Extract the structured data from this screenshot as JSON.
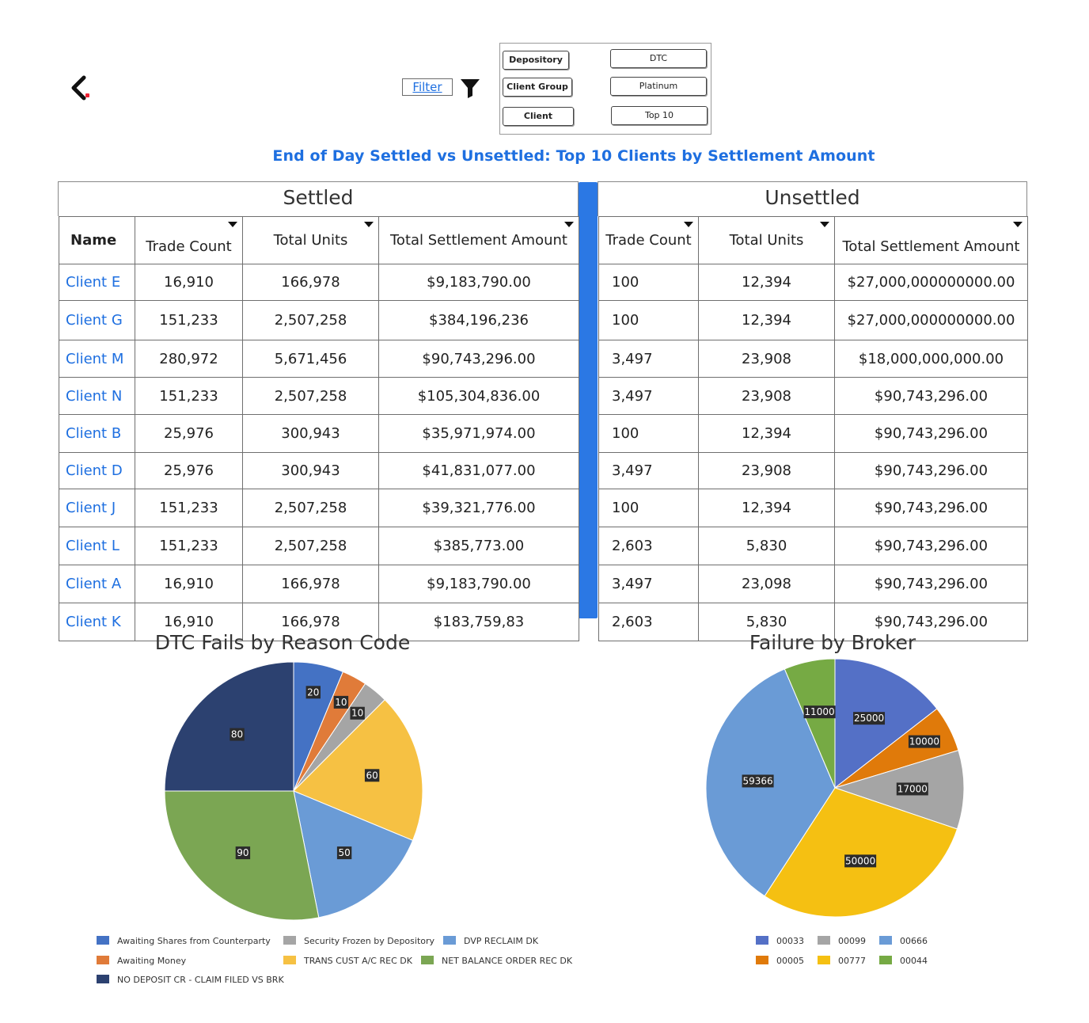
{
  "nav": {
    "back_icon": "chevron-left-icon"
  },
  "filter": {
    "link_label": "Filter",
    "icon": "funnel-icon",
    "fields": [
      {
        "label": "Depository",
        "value": "DTC"
      },
      {
        "label": "Client Group",
        "value": "Platinum"
      },
      {
        "label": "Client",
        "value": "Top 10"
      }
    ]
  },
  "page_title": "End of Day Settled vs Unsettled: Top 10 Clients by Settlement Amount",
  "settled": {
    "heading": "Settled",
    "columns": [
      "Name",
      "Trade Count",
      "Total Units",
      "Total Settlement Amount"
    ]
  },
  "unsettled": {
    "heading": "Unsettled",
    "columns": [
      "Trade Count",
      "Total Units",
      "Total Settlement Amount"
    ]
  },
  "rows": [
    {
      "name": "Client E",
      "s_trades": "16,910",
      "s_units": "166,978",
      "s_amount": "$9,183,790.00",
      "u_trades": "100",
      "u_units": "12,394",
      "u_amount": "$27,000,000000000.00"
    },
    {
      "name": "Client G",
      "s_trades": "151,233",
      "s_units": "2,507,258",
      "s_amount": "$384,196,236",
      "u_trades": "100",
      "u_units": "12,394",
      "u_amount": "$27,000,000000000.00"
    },
    {
      "name": "Client M",
      "s_trades": "280,972",
      "s_units": "5,671,456",
      "s_amount": "$90,743,296.00",
      "u_trades": "3,497",
      "u_units": "23,908",
      "u_amount": "$18,000,000,000.00"
    },
    {
      "name": "Client N",
      "s_trades": "151,233",
      "s_units": "2,507,258",
      "s_amount": "$105,304,836.00",
      "u_trades": "3,497",
      "u_units": "23,908",
      "u_amount": "$90,743,296.00"
    },
    {
      "name": "Client B",
      "s_trades": "25,976",
      "s_units": "300,943",
      "s_amount": "$35,971,974.00",
      "u_trades": "100",
      "u_units": "12,394",
      "u_amount": "$90,743,296.00"
    },
    {
      "name": "Client D",
      "s_trades": "25,976",
      "s_units": "300,943",
      "s_amount": "$41,831,077.00",
      "u_trades": "3,497",
      "u_units": "23,908",
      "u_amount": "$90,743,296.00"
    },
    {
      "name": "Client J",
      "s_trades": "151,233",
      "s_units": "2,507,258",
      "s_amount": "$39,321,776.00",
      "u_trades": "100",
      "u_units": "12,394",
      "u_amount": "$90,743,296.00"
    },
    {
      "name": "Client L",
      "s_trades": "151,233",
      "s_units": "2,507,258",
      "s_amount": "$385,773.00",
      "u_trades": "2,603",
      "u_units": "5,830",
      "u_amount": "$90,743,296.00"
    },
    {
      "name": "Client A",
      "s_trades": "16,910",
      "s_units": "166,978",
      "s_amount": "$9,183,790.00",
      "u_trades": "3,497",
      "u_units": "23,098",
      "u_amount": "$90,743,296.00"
    },
    {
      "name": "Client K",
      "s_trades": "16,910",
      "s_units": "166,978",
      "s_amount": "$183,759,83",
      "u_trades": "2,603",
      "u_units": "5,830",
      "u_amount": "$90,743,296.00"
    }
  ],
  "chart_data": [
    {
      "type": "pie",
      "title": "DTC Fails by Reason Code",
      "categories": [
        "Awaiting Shares from Counterparty",
        "Awaiting Money",
        "Security Frozen by Depository",
        "TRANS CUST A/C REC DK",
        "DVP RECLAIM DK",
        "NET BALANCE ORDER REC DK",
        "NO DEPOSIT CR - CLAIM FILED VS BRK"
      ],
      "values": [
        20,
        10,
        10,
        60,
        50,
        90,
        80
      ],
      "colors": [
        "#4472c4",
        "#e07b39",
        "#a5a5a5",
        "#f6c143",
        "#6a9bd6",
        "#7ba653",
        "#2c4170"
      ],
      "legend_position": "bottom"
    },
    {
      "type": "pie",
      "title": "Failure by Broker",
      "categories": [
        "00033",
        "00005",
        "00099",
        "00777",
        "00666",
        "00044"
      ],
      "values": [
        25000,
        10000,
        17000,
        50000,
        59366,
        11000
      ],
      "colors": [
        "#5470c6",
        "#e07a0a",
        "#a5a5a5",
        "#f5c012",
        "#6a9bd6",
        "#76aa44"
      ],
      "legend_position": "bottom"
    }
  ]
}
